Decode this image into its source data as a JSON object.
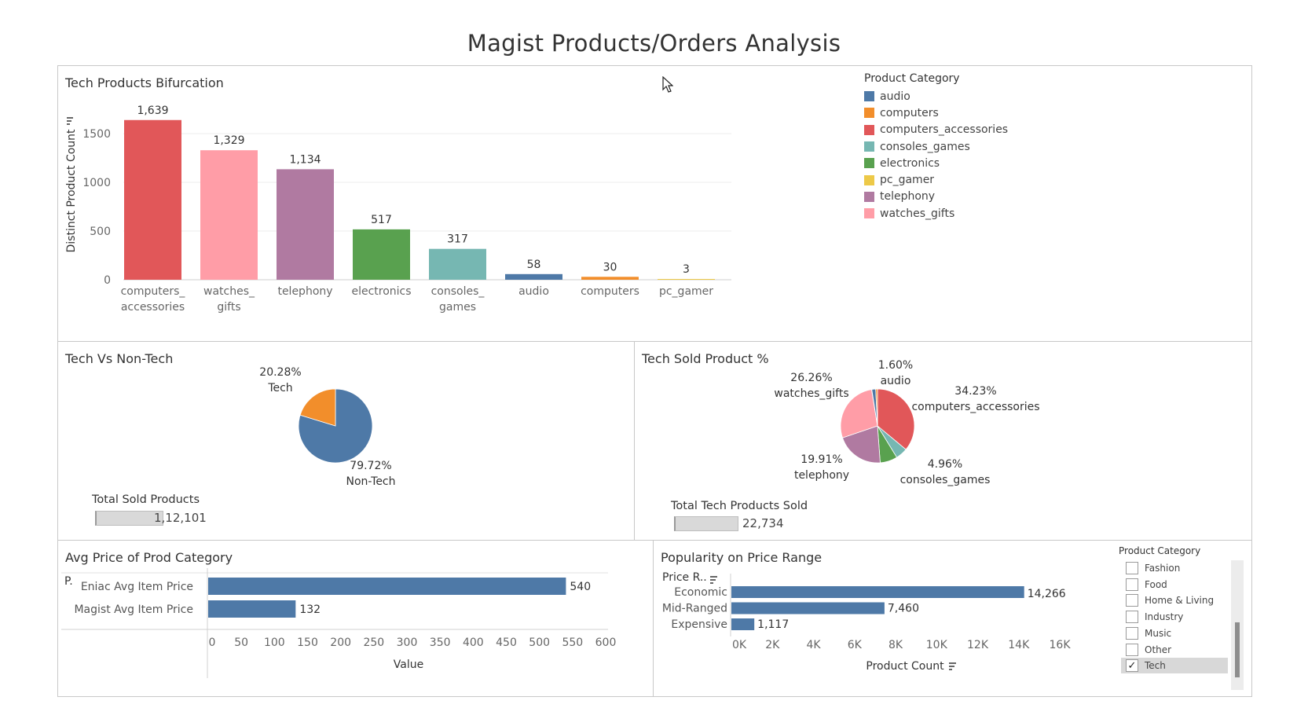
{
  "dashboard": {
    "title": "Magist Products/Orders Analysis"
  },
  "colors": {
    "audio": "#4e79a7",
    "computers": "#f28e2b",
    "computers_accessories": "#e15759",
    "consoles_games": "#76b7b2",
    "electronics": "#59a14f",
    "pc_gamer": "#edc948",
    "telephony": "#b07aa1",
    "watches_gifts": "#ff9da7",
    "bar_blue": "#4e79a7",
    "tech_orange": "#f28e2b",
    "nontech_blue": "#4e79a7"
  },
  "tech_products": {
    "title": "Tech Products Bifurcation",
    "legend_title": "Product Category",
    "legend": [
      "audio",
      "computers",
      "computers_accessories",
      "consoles_games",
      "electronics",
      "pc_gamer",
      "telephony",
      "watches_gifts"
    ]
  },
  "tech_vs_nontech": {
    "title": "Tech Vs Non-Tech",
    "kpi_label": "Total Sold Products",
    "kpi_value": "1,12,101"
  },
  "tech_sold_pct": {
    "title": "Tech Sold Product %",
    "kpi_label": "Total Tech Products Sold",
    "kpi_value": "22,734"
  },
  "avg_price": {
    "title": "Avg Price of Prod Category",
    "row_header": "P."
  },
  "popularity": {
    "title": "Popularity on Price Range",
    "row_header": "Price R..",
    "filter_title": "Product Category",
    "filter_items": [
      {
        "label": "Fashion",
        "checked": false
      },
      {
        "label": "Food",
        "checked": false
      },
      {
        "label": "Home & Living",
        "checked": false
      },
      {
        "label": "Industry",
        "checked": false
      },
      {
        "label": "Music",
        "checked": false
      },
      {
        "label": "Other",
        "checked": false
      },
      {
        "label": "Tech",
        "checked": true
      }
    ]
  },
  "chart_data": [
    {
      "type": "bar",
      "title": "Tech Products Bifurcation",
      "categories": [
        "computers_\naccessories",
        "watches_\ngifts",
        "telephony",
        "electronics",
        "consoles_\ngames",
        "audio",
        "computers",
        "pc_gamer"
      ],
      "series_keys": [
        "computers_accessories",
        "watches_gifts",
        "telephony",
        "electronics",
        "consoles_games",
        "audio",
        "computers",
        "pc_gamer"
      ],
      "values": [
        1639,
        1329,
        1134,
        517,
        317,
        58,
        30,
        3
      ],
      "value_labels": [
        "1,639",
        "1,329",
        "1,134",
        "517",
        "317",
        "58",
        "30",
        "3"
      ],
      "ylabel": "Distinct Product Count",
      "yticks": [
        0,
        500,
        1000,
        1500
      ],
      "ytick_labels": [
        "0",
        "500",
        "1000",
        "1500"
      ],
      "ylim": [
        0,
        1750
      ],
      "grid": true
    },
    {
      "type": "pie",
      "title": "Tech Vs Non-Tech",
      "labels": [
        "Tech",
        "Non-Tech"
      ],
      "values": [
        20.28,
        79.72
      ],
      "value_labels": [
        "20.28%",
        "79.72%"
      ]
    },
    {
      "type": "pie",
      "title": "Tech Sold Product %",
      "labels": [
        "computers_accessories",
        "consoles_games",
        "electronics",
        "telephony",
        "watches_gifts",
        "pc_gamer",
        "audio",
        "computers"
      ],
      "values": [
        34.23,
        4.96,
        7.2,
        19.91,
        26.26,
        0.1,
        1.6,
        0.74
      ],
      "value_labels": [
        "34.23%",
        "4.96%",
        "",
        "19.91%",
        "26.26%",
        "",
        "1.60%",
        ""
      ]
    },
    {
      "type": "bar",
      "orientation": "horizontal",
      "title": "Avg Price of Prod Category",
      "categories": [
        "Eniac Avg Item Price",
        "Magist Avg Item Price"
      ],
      "values": [
        540,
        132
      ],
      "value_labels": [
        "540",
        "132"
      ],
      "xlabel": "Value",
      "xticks": [
        0,
        50,
        100,
        150,
        200,
        250,
        300,
        350,
        400,
        450,
        500,
        550,
        600
      ],
      "xtick_labels": [
        "0",
        "50",
        "100",
        "150",
        "200",
        "250",
        "300",
        "350",
        "400",
        "450",
        "500",
        "550",
        "600"
      ],
      "xlim": [
        0,
        600
      ]
    },
    {
      "type": "bar",
      "orientation": "horizontal",
      "title": "Popularity on Price Range",
      "categories": [
        "Economic",
        "Mid-Ranged",
        "Expensive"
      ],
      "values": [
        14266,
        7460,
        1117
      ],
      "value_labels": [
        "14,266",
        "7,460",
        "1,117"
      ],
      "xlabel": "Product Count",
      "xticks": [
        0,
        2000,
        4000,
        6000,
        8000,
        10000,
        12000,
        14000,
        16000
      ],
      "xtick_labels": [
        "0K",
        "2K",
        "4K",
        "6K",
        "8K",
        "10K",
        "12K",
        "14K",
        "16K"
      ],
      "xlim": [
        0,
        16000
      ]
    }
  ]
}
